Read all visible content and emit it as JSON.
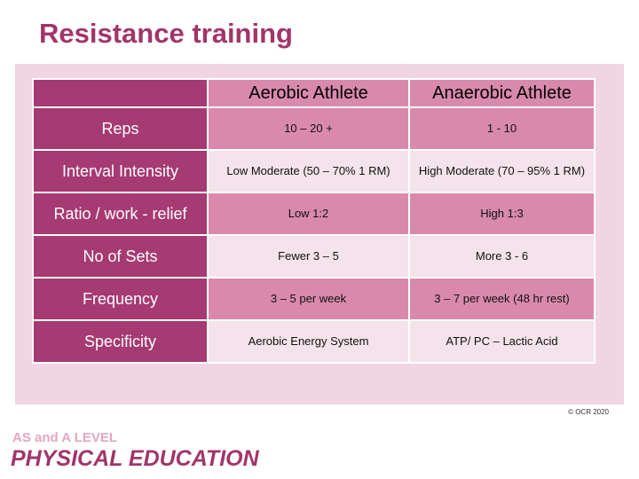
{
  "title": "Resistance training",
  "table": {
    "headers": [
      "",
      "Aerobic Athlete",
      "Anaerobic Athlete"
    ],
    "rows": [
      {
        "label": "Reps",
        "aerobic": "10 – 20 +",
        "anaerobic": "1 - 10"
      },
      {
        "label": "Interval Intensity",
        "aerobic": "Low Moderate (50 – 70% 1 RM)",
        "anaerobic": "High Moderate (70 – 95% 1 RM)"
      },
      {
        "label": "Ratio / work - relief",
        "aerobic": "Low 1:2",
        "anaerobic": "High 1:3"
      },
      {
        "label": "No of Sets",
        "aerobic": "Fewer 3 – 5",
        "anaerobic": "More 3 - 6"
      },
      {
        "label": "Frequency",
        "aerobic": "3 – 5 per week",
        "anaerobic": "3 – 7 per week (48 hr rest)"
      },
      {
        "label": "Specificity",
        "aerobic": "Aerobic Energy System",
        "anaerobic": "ATP/ PC – Lactic Acid"
      }
    ]
  },
  "copyright": "© OCR 2020",
  "logo": {
    "line1": "AS and A LEVEL",
    "line2": "PHYSICAL EDUCATION"
  },
  "colors": {
    "title": "#a2356a",
    "row_label_bg": "#a63a72",
    "cell_dark": "#d98aac",
    "cell_light": "#f4e3ea",
    "panel_bg": "#efd6e2"
  }
}
